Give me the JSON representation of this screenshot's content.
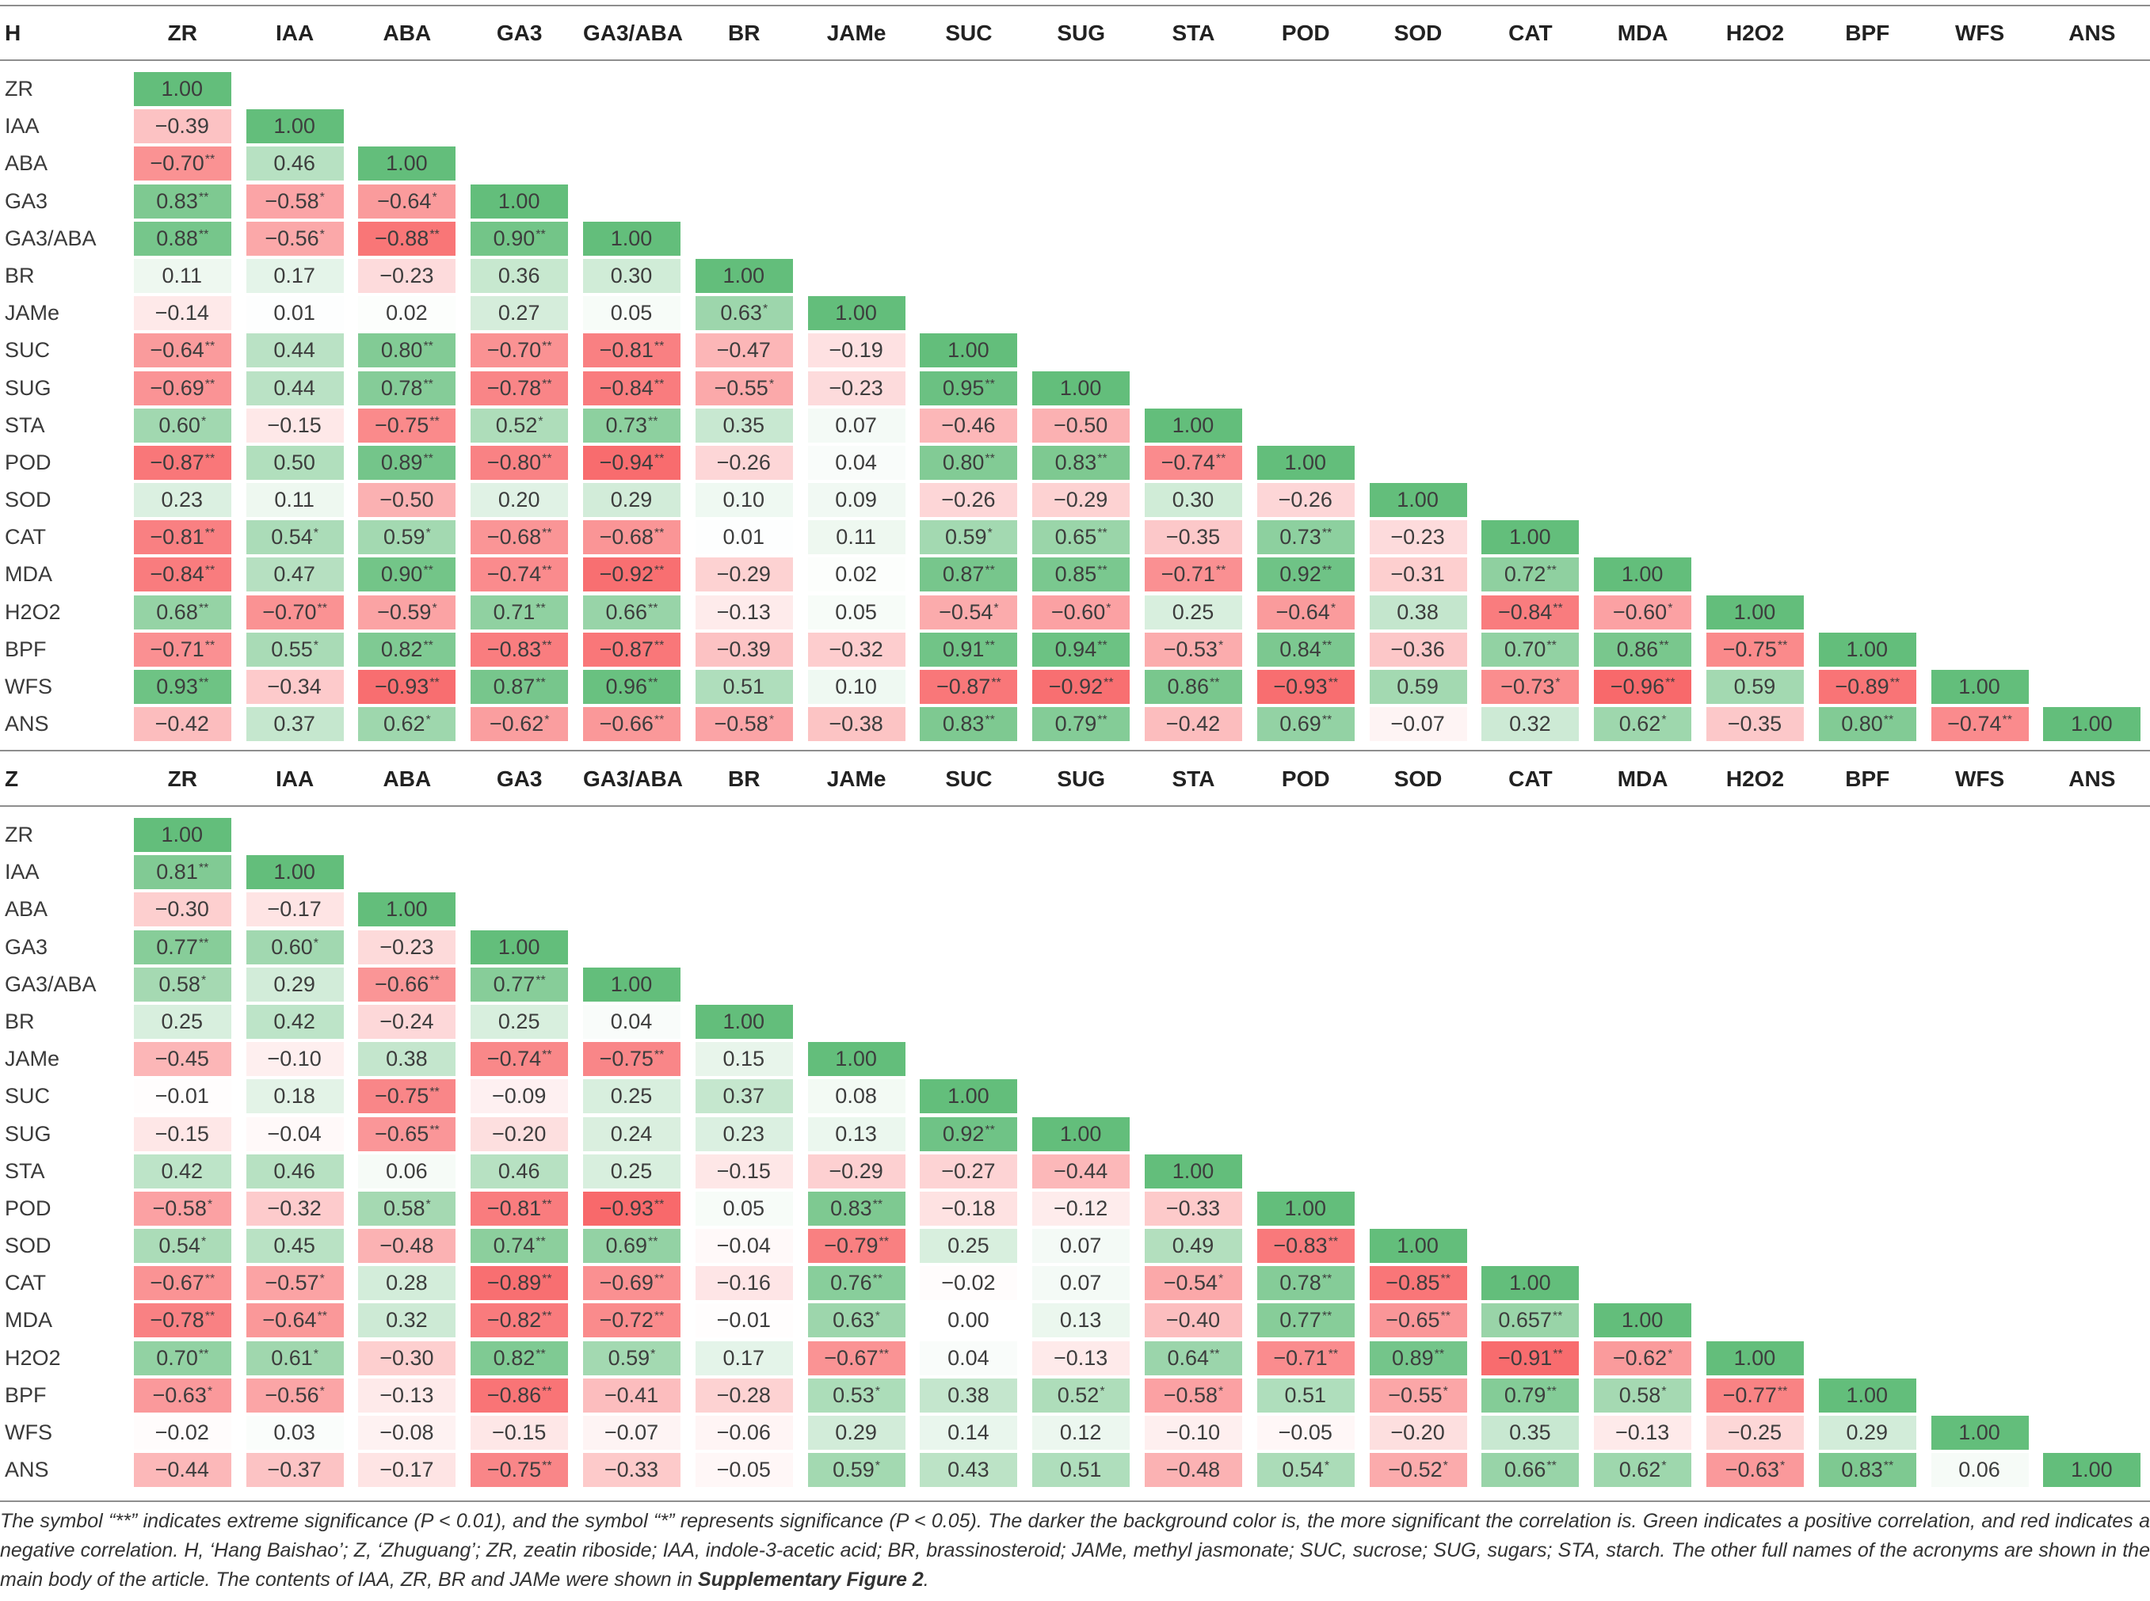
{
  "colors": {
    "positive": "#63BE7B",
    "negative": "#F8696B",
    "neutral": "#FFFFFF"
  },
  "tables": [
    {
      "corner": "H",
      "columns": [
        "ZR",
        "IAA",
        "ABA",
        "GA3",
        "GA3/ABA",
        "BR",
        "JAMe",
        "SUC",
        "SUG",
        "STA",
        "POD",
        "SOD",
        "CAT",
        "MDA",
        "H2O2",
        "BPF",
        "WFS",
        "ANS"
      ],
      "rows": [
        {
          "label": "ZR",
          "values": [
            "1.00"
          ],
          "sig": [
            ""
          ]
        },
        {
          "label": "IAA",
          "values": [
            "−0.39",
            "1.00"
          ],
          "sig": [
            "",
            ""
          ]
        },
        {
          "label": "ABA",
          "values": [
            "−0.70",
            "0.46",
            "1.00"
          ],
          "sig": [
            "**",
            "",
            ""
          ]
        },
        {
          "label": "GA3",
          "values": [
            "0.83",
            "−0.58",
            "−0.64",
            "1.00"
          ],
          "sig": [
            "**",
            "*",
            "*",
            ""
          ]
        },
        {
          "label": "GA3/ABA",
          "values": [
            "0.88",
            "−0.56",
            "−0.88",
            "0.90",
            "1.00"
          ],
          "sig": [
            "**",
            "*",
            "**",
            "**",
            ""
          ]
        },
        {
          "label": "BR",
          "values": [
            "0.11",
            "0.17",
            "−0.23",
            "0.36",
            "0.30",
            "1.00"
          ],
          "sig": [
            "",
            "",
            "",
            "",
            "",
            ""
          ]
        },
        {
          "label": "JAMe",
          "values": [
            "−0.14",
            "0.01",
            "0.02",
            "0.27",
            "0.05",
            "0.63",
            "1.00"
          ],
          "sig": [
            "",
            "",
            "",
            "",
            "",
            "*",
            ""
          ]
        },
        {
          "label": "SUC",
          "values": [
            "−0.64",
            "0.44",
            "0.80",
            "−0.70",
            "−0.81",
            "−0.47",
            "−0.19",
            "1.00"
          ],
          "sig": [
            "**",
            "",
            "**",
            "**",
            "**",
            "",
            "",
            ""
          ]
        },
        {
          "label": "SUG",
          "values": [
            "−0.69",
            "0.44",
            "0.78",
            "−0.78",
            "−0.84",
            "−0.55",
            "−0.23",
            "0.95",
            "1.00"
          ],
          "sig": [
            "**",
            "",
            "**",
            "**",
            "**",
            "*",
            "",
            "**",
            ""
          ]
        },
        {
          "label": "STA",
          "values": [
            "0.60",
            "−0.15",
            "−0.75",
            "0.52",
            "0.73",
            "0.35",
            "0.07",
            "−0.46",
            "−0.50",
            "1.00"
          ],
          "sig": [
            "*",
            "",
            "**",
            "*",
            "**",
            "",
            "",
            "",
            "",
            ""
          ]
        },
        {
          "label": "POD",
          "values": [
            "−0.87",
            "0.50",
            "0.89",
            "−0.80",
            "−0.94",
            "−0.26",
            "0.04",
            "0.80",
            "0.83",
            "−0.74",
            "1.00"
          ],
          "sig": [
            "**",
            "",
            "**",
            "**",
            "**",
            "",
            "",
            "**",
            "**",
            "**",
            ""
          ]
        },
        {
          "label": "SOD",
          "values": [
            "0.23",
            "0.11",
            "−0.50",
            "0.20",
            "0.29",
            "0.10",
            "0.09",
            "−0.26",
            "−0.29",
            "0.30",
            "−0.26",
            "1.00"
          ],
          "sig": [
            "",
            "",
            "",
            "",
            "",
            "",
            "",
            "",
            "",
            "",
            "",
            ""
          ]
        },
        {
          "label": "CAT",
          "values": [
            "−0.81",
            "0.54",
            "0.59",
            "−0.68",
            "−0.68",
            "0.01",
            "0.11",
            "0.59",
            "0.65",
            "−0.35",
            "0.73",
            "−0.23",
            "1.00"
          ],
          "sig": [
            "**",
            "*",
            "*",
            "**",
            "**",
            "",
            "",
            "*",
            "**",
            "",
            "**",
            "",
            ""
          ]
        },
        {
          "label": "MDA",
          "values": [
            "−0.84",
            "0.47",
            "0.90",
            "−0.74",
            "−0.92",
            "−0.29",
            "0.02",
            "0.87",
            "0.85",
            "−0.71",
            "0.92",
            "−0.31",
            "0.72",
            "1.00"
          ],
          "sig": [
            "**",
            "",
            "**",
            "**",
            "**",
            "",
            "",
            "**",
            "**",
            "**",
            "**",
            "",
            "**",
            ""
          ]
        },
        {
          "label": "H2O2",
          "values": [
            "0.68",
            "−0.70",
            "−0.59",
            "0.71",
            "0.66",
            "−0.13",
            "0.05",
            "−0.54",
            "−0.60",
            "0.25",
            "−0.64",
            "0.38",
            "−0.84",
            "−0.60",
            "1.00"
          ],
          "sig": [
            "**",
            "**",
            "*",
            "**",
            "**",
            "",
            "",
            "*",
            "*",
            "",
            "*",
            "",
            "**",
            "*",
            ""
          ]
        },
        {
          "label": "BPF",
          "values": [
            "−0.71",
            "0.55",
            "0.82",
            "−0.83",
            "−0.87",
            "−0.39",
            "−0.32",
            "0.91",
            "0.94",
            "−0.53",
            "0.84",
            "−0.36",
            "0.70",
            "0.86",
            "−0.75",
            "1.00"
          ],
          "sig": [
            "**",
            "*",
            "**",
            "**",
            "**",
            "",
            "",
            "**",
            "**",
            "*",
            "**",
            "",
            "**",
            "**",
            "**",
            ""
          ]
        },
        {
          "label": "WFS",
          "values": [
            "0.93",
            "−0.34",
            "−0.93",
            "0.87",
            "0.96",
            "0.51",
            "0.10",
            "−0.87",
            "−0.92",
            "0.86",
            "−0.93",
            "0.59",
            "−0.73",
            "−0.96",
            "0.59",
            "−0.89",
            "1.00"
          ],
          "sig": [
            "**",
            "",
            "**",
            "**",
            "**",
            "",
            "",
            "**",
            "**",
            "**",
            "**",
            "",
            "*",
            "**",
            "",
            "**",
            ""
          ]
        },
        {
          "label": "ANS",
          "values": [
            "−0.42",
            "0.37",
            "0.62",
            "−0.62",
            "−0.66",
            "−0.58",
            "−0.38",
            "0.83",
            "0.79",
            "−0.42",
            "0.69",
            "−0.07",
            "0.32",
            "0.62",
            "−0.35",
            "0.80",
            "−0.74",
            "1.00"
          ],
          "sig": [
            "",
            "",
            "*",
            "*",
            "**",
            "*",
            "",
            "**",
            "**",
            "",
            "**",
            "",
            "",
            "*",
            "",
            "**",
            "**",
            ""
          ]
        }
      ]
    },
    {
      "corner": "Z",
      "columns": [
        "ZR",
        "IAA",
        "ABA",
        "GA3",
        "GA3/ABA",
        "BR",
        "JAMe",
        "SUC",
        "SUG",
        "STA",
        "POD",
        "SOD",
        "CAT",
        "MDA",
        "H2O2",
        "BPF",
        "WFS",
        "ANS"
      ],
      "rows": [
        {
          "label": "ZR",
          "values": [
            "1.00"
          ],
          "sig": [
            ""
          ]
        },
        {
          "label": "IAA",
          "values": [
            "0.81",
            "1.00"
          ],
          "sig": [
            "**",
            ""
          ]
        },
        {
          "label": "ABA",
          "values": [
            "−0.30",
            "−0.17",
            "1.00"
          ],
          "sig": [
            "",
            "",
            ""
          ]
        },
        {
          "label": "GA3",
          "values": [
            "0.77",
            "0.60",
            "−0.23",
            "1.00"
          ],
          "sig": [
            "**",
            "*",
            "",
            ""
          ]
        },
        {
          "label": "GA3/ABA",
          "values": [
            "0.58",
            "0.29",
            "−0.66",
            "0.77",
            "1.00"
          ],
          "sig": [
            "*",
            "",
            "**",
            "**",
            ""
          ]
        },
        {
          "label": "BR",
          "values": [
            "0.25",
            "0.42",
            "−0.24",
            "0.25",
            "0.04",
            "1.00"
          ],
          "sig": [
            "",
            "",
            "",
            "",
            "",
            ""
          ]
        },
        {
          "label": "JAMe",
          "values": [
            "−0.45",
            "−0.10",
            "0.38",
            "−0.74",
            "−0.75",
            "0.15",
            "1.00"
          ],
          "sig": [
            "",
            "",
            "",
            "**",
            "**",
            "",
            ""
          ]
        },
        {
          "label": "SUC",
          "values": [
            "−0.01",
            "0.18",
            "−0.75",
            "−0.09",
            "0.25",
            "0.37",
            "0.08",
            "1.00"
          ],
          "sig": [
            "",
            "",
            "**",
            "",
            "",
            "",
            "",
            ""
          ]
        },
        {
          "label": "SUG",
          "values": [
            "−0.15",
            "−0.04",
            "−0.65",
            "−0.20",
            "0.24",
            "0.23",
            "0.13",
            "0.92",
            "1.00"
          ],
          "sig": [
            "",
            "",
            "**",
            "",
            "",
            "",
            "",
            "**",
            ""
          ]
        },
        {
          "label": "STA",
          "values": [
            "0.42",
            "0.46",
            "0.06",
            "0.46",
            "0.25",
            "−0.15",
            "−0.29",
            "−0.27",
            "−0.44",
            "1.00"
          ],
          "sig": [
            "",
            "",
            "",
            "",
            "",
            "",
            "",
            "",
            "",
            ""
          ]
        },
        {
          "label": "POD",
          "values": [
            "−0.58",
            "−0.32",
            "0.58",
            "−0.81",
            "−0.93",
            "0.05",
            "0.83",
            "−0.18",
            "−0.12",
            "−0.33",
            "1.00"
          ],
          "sig": [
            "*",
            "",
            "*",
            "**",
            "**",
            "",
            "**",
            "",
            "",
            "",
            ""
          ]
        },
        {
          "label": "SOD",
          "values": [
            "0.54",
            "0.45",
            "−0.48",
            "0.74",
            "0.69",
            "−0.04",
            "−0.79",
            "0.25",
            "0.07",
            "0.49",
            "−0.83",
            "1.00"
          ],
          "sig": [
            "*",
            "",
            "",
            "**",
            "**",
            "",
            "**",
            "",
            "",
            "",
            "**",
            ""
          ]
        },
        {
          "label": "CAT",
          "values": [
            "−0.67",
            "−0.57",
            "0.28",
            "−0.89",
            "−0.69",
            "−0.16",
            "0.76",
            "−0.02",
            "0.07",
            "−0.54",
            "0.78",
            "−0.85",
            "1.00"
          ],
          "sig": [
            "**",
            "*",
            "",
            "**",
            "**",
            "",
            "**",
            "",
            "",
            "*",
            "**",
            "**",
            ""
          ]
        },
        {
          "label": "MDA",
          "values": [
            "−0.78",
            "−0.64",
            "0.32",
            "−0.82",
            "−0.72",
            "−0.01",
            "0.63",
            "0.00",
            "0.13",
            "−0.40",
            "0.77",
            "−0.65",
            "0.657",
            "1.00"
          ],
          "sig": [
            "**",
            "**",
            "",
            "**",
            "**",
            "",
            "*",
            "",
            "",
            "",
            "**",
            "**",
            "**",
            ""
          ]
        },
        {
          "label": "H2O2",
          "values": [
            "0.70",
            "0.61",
            "−0.30",
            "0.82",
            "0.59",
            "0.17",
            "−0.67",
            "0.04",
            "−0.13",
            "0.64",
            "−0.71",
            "0.89",
            "−0.91",
            "−0.62",
            "1.00"
          ],
          "sig": [
            "**",
            "*",
            "",
            "**",
            "*",
            "",
            "**",
            "",
            "",
            "**",
            "**",
            "**",
            "**",
            "*",
            ""
          ]
        },
        {
          "label": "BPF",
          "values": [
            "−0.63",
            "−0.56",
            "−0.13",
            "−0.86",
            "−0.41",
            "−0.28",
            "0.53",
            "0.38",
            "0.52",
            "−0.58",
            "0.51",
            "−0.55",
            "0.79",
            "0.58",
            "−0.77",
            "1.00"
          ],
          "sig": [
            "*",
            "*",
            "",
            "**",
            "",
            "",
            "*",
            "",
            "*",
            "*",
            "",
            "*",
            "**",
            "*",
            "**",
            ""
          ]
        },
        {
          "label": "WFS",
          "values": [
            "−0.02",
            "0.03",
            "−0.08",
            "−0.15",
            "−0.07",
            "−0.06",
            "0.29",
            "0.14",
            "0.12",
            "−0.10",
            "−0.05",
            "−0.20",
            "0.35",
            "−0.13",
            "−0.25",
            "0.29",
            "1.00"
          ],
          "sig": [
            "",
            "",
            "",
            "",
            "",
            "",
            "",
            "",
            "",
            "",
            "",
            "",
            "",
            "",
            "",
            "",
            ""
          ]
        },
        {
          "label": "ANS",
          "values": [
            "−0.44",
            "−0.37",
            "−0.17",
            "−0.75",
            "−0.33",
            "−0.05",
            "0.59",
            "0.43",
            "0.51",
            "−0.48",
            "0.54",
            "−0.52",
            "0.66",
            "0.62",
            "−0.63",
            "0.83",
            "0.06",
            "1.00"
          ],
          "sig": [
            "",
            "",
            "",
            "**",
            "",
            "",
            "*",
            "",
            "",
            "",
            "*",
            "*",
            "**",
            "*",
            "*",
            "**",
            "",
            ""
          ]
        }
      ]
    }
  ],
  "caption": {
    "text": "The symbol “**” indicates extreme significance (P < 0.01), and the symbol “*” represents significance (P < 0.05). The darker the background color is, the more significant the correlation is. Green indicates a positive correlation, and red indicates a negative correlation. H, ‘Hang Baishao’; Z, ‘Zhuguang’; ZR, zeatin riboside; IAA, indole-3-acetic acid; BR, brassinosteroid; JAMe, methyl jasmonate; SUC, sucrose; SUG, sugars; STA, starch. The other full names of the acronyms are shown in the main body of the article. The contents of IAA, ZR, BR and JAMe were shown in ",
    "bold": "Supplementary Figure 2",
    "end": "."
  }
}
